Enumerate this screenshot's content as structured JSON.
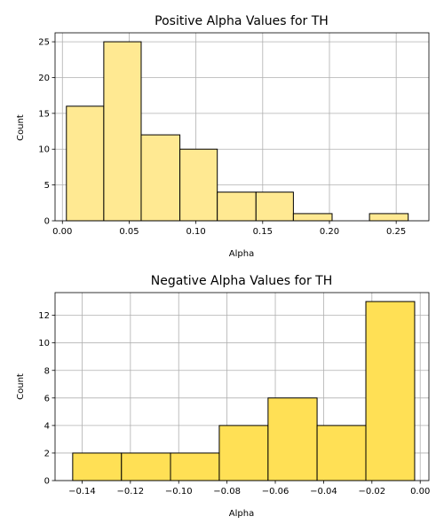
{
  "chart_data": [
    {
      "type": "bar",
      "title": "Positive Alpha Values for TH",
      "xlabel": "Alpha",
      "ylabel": "Count",
      "xlim": [
        -0.0055,
        0.2745
      ],
      "ylim": [
        0,
        26.25
      ],
      "grid": true,
      "bar_color": "#ffe992",
      "bins": [
        {
          "x0": 0.003,
          "x1": 0.031,
          "count": 16
        },
        {
          "x0": 0.031,
          "x1": 0.059,
          "count": 25
        },
        {
          "x0": 0.059,
          "x1": 0.088,
          "count": 12
        },
        {
          "x0": 0.088,
          "x1": 0.116,
          "count": 10
        },
        {
          "x0": 0.116,
          "x1": 0.145,
          "count": 4
        },
        {
          "x0": 0.145,
          "x1": 0.173,
          "count": 4
        },
        {
          "x0": 0.173,
          "x1": 0.202,
          "count": 1
        },
        {
          "x0": 0.202,
          "x1": 0.23,
          "count": 0
        },
        {
          "x0": 0.23,
          "x1": 0.259,
          "count": 1
        }
      ],
      "xticks": [
        {
          "value": 0.0,
          "label": "0.00"
        },
        {
          "value": 0.05,
          "label": "0.05"
        },
        {
          "value": 0.1,
          "label": "0.10"
        },
        {
          "value": 0.15,
          "label": "0.15"
        },
        {
          "value": 0.2,
          "label": "0.20"
        },
        {
          "value": 0.25,
          "label": "0.25"
        }
      ],
      "yticks": [
        {
          "value": 0,
          "label": "0"
        },
        {
          "value": 5,
          "label": "5"
        },
        {
          "value": 10,
          "label": "10"
        },
        {
          "value": 15,
          "label": "15"
        },
        {
          "value": 20,
          "label": "20"
        },
        {
          "value": 25,
          "label": "25"
        }
      ]
    },
    {
      "type": "bar",
      "title": "Negative Alpha Values for TH",
      "xlabel": "Alpha",
      "ylabel": "Count",
      "xlim": [
        -0.1512,
        0.0036
      ],
      "ylim": [
        0,
        13.65
      ],
      "grid": true,
      "bar_color": "#ffe055",
      "bins": [
        {
          "x0": -0.1439,
          "x1": -0.1237,
          "count": 2
        },
        {
          "x0": -0.1237,
          "x1": -0.1034,
          "count": 2
        },
        {
          "x0": -0.1034,
          "x1": -0.0832,
          "count": 2
        },
        {
          "x0": -0.0832,
          "x1": -0.063,
          "count": 4
        },
        {
          "x0": -0.063,
          "x1": -0.0427,
          "count": 6
        },
        {
          "x0": -0.0427,
          "x1": -0.0225,
          "count": 4
        },
        {
          "x0": -0.0225,
          "x1": -0.0023,
          "count": 13
        }
      ],
      "xticks": [
        {
          "value": -0.14,
          "label": "−0.14"
        },
        {
          "value": -0.12,
          "label": "−0.12"
        },
        {
          "value": -0.1,
          "label": "−0.10"
        },
        {
          "value": -0.08,
          "label": "−0.08"
        },
        {
          "value": -0.06,
          "label": "−0.06"
        },
        {
          "value": -0.04,
          "label": "−0.04"
        },
        {
          "value": -0.02,
          "label": "−0.02"
        },
        {
          "value": 0.0,
          "label": "0.00"
        }
      ],
      "yticks": [
        {
          "value": 0,
          "label": "0"
        },
        {
          "value": 2,
          "label": "2"
        },
        {
          "value": 4,
          "label": "4"
        },
        {
          "value": 6,
          "label": "6"
        },
        {
          "value": 8,
          "label": "8"
        },
        {
          "value": 10,
          "label": "10"
        },
        {
          "value": 12,
          "label": "12"
        }
      ]
    }
  ]
}
